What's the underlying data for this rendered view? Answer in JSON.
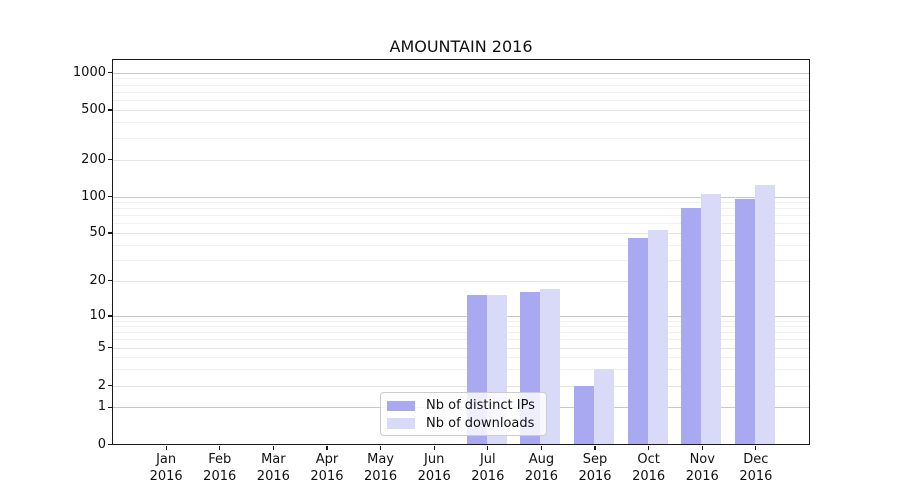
{
  "chart_data": {
    "type": "bar",
    "title": "AMOUNTAIN 2016",
    "year": "2016",
    "categories": [
      "Jan",
      "Feb",
      "Mar",
      "Apr",
      "May",
      "Jun",
      "Jul",
      "Aug",
      "Sep",
      "Oct",
      "Nov",
      "Dec"
    ],
    "series": [
      {
        "name": "Nb of distinct IPs",
        "color": "#a9a9f1",
        "values": [
          null,
          null,
          null,
          null,
          null,
          null,
          15,
          16,
          2,
          45,
          80,
          95
        ]
      },
      {
        "name": "Nb of downloads",
        "color": "#d9d9f8",
        "values": [
          null,
          null,
          null,
          null,
          null,
          null,
          15,
          17,
          3,
          53,
          105,
          125
        ]
      }
    ],
    "y_ticks": [
      0,
      1,
      2,
      5,
      10,
      20,
      50,
      100,
      200,
      500,
      1000
    ],
    "y_scale": "symlog",
    "ylim": [
      0,
      1500
    ],
    "grid": true,
    "legend_position": "lower-center"
  }
}
